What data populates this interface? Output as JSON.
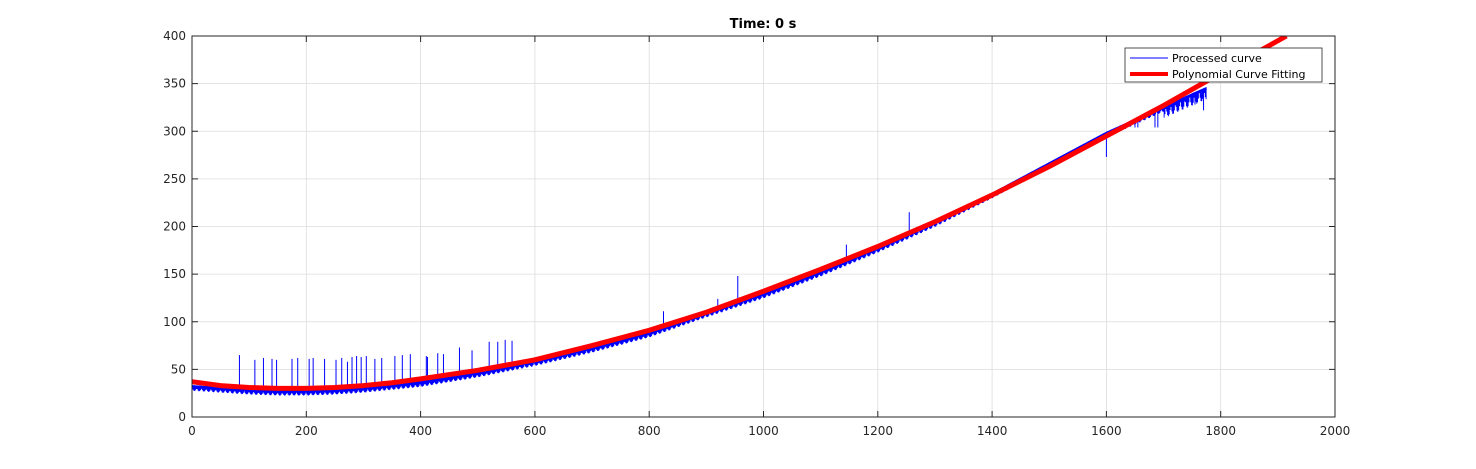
{
  "chart_data": {
    "type": "line",
    "title": "Time: 0 s",
    "xlabel": "",
    "ylabel": "",
    "xlim": [
      0,
      2000
    ],
    "ylim": [
      0,
      400
    ],
    "xticks": [
      0,
      200,
      400,
      600,
      800,
      1000,
      1200,
      1400,
      1600,
      1800,
      2000
    ],
    "yticks": [
      0,
      50,
      100,
      150,
      200,
      250,
      300,
      350,
      400
    ],
    "grid": true,
    "legend": {
      "placement": "top-right",
      "entries": [
        "Processed curve",
        "Polynomial Curve Fitting"
      ]
    },
    "series": [
      {
        "name": "Processed curve",
        "color": "#0000ff",
        "x": [
          0,
          50,
          100,
          150,
          200,
          250,
          300,
          350,
          400,
          500,
          600,
          700,
          800,
          900,
          1000,
          1100,
          1200,
          1300,
          1400,
          1500,
          1600,
          1700,
          1775
        ],
        "y": [
          32,
          30,
          28,
          27,
          27,
          28,
          30,
          33,
          36,
          46,
          58,
          72,
          88,
          109,
          129,
          152,
          177,
          204,
          234,
          266,
          298,
          325,
          345
        ],
        "spikes": [
          {
            "x": 83,
            "y": 65
          },
          {
            "x": 110,
            "y": 60
          },
          {
            "x": 125,
            "y": 62
          },
          {
            "x": 140,
            "y": 61
          },
          {
            "x": 148,
            "y": 60
          },
          {
            "x": 175,
            "y": 61
          },
          {
            "x": 185,
            "y": 62
          },
          {
            "x": 205,
            "y": 61
          },
          {
            "x": 212,
            "y": 62
          },
          {
            "x": 232,
            "y": 61
          },
          {
            "x": 252,
            "y": 60
          },
          {
            "x": 262,
            "y": 62
          },
          {
            "x": 272,
            "y": 58
          },
          {
            "x": 280,
            "y": 63
          },
          {
            "x": 288,
            "y": 64
          },
          {
            "x": 296,
            "y": 63
          },
          {
            "x": 305,
            "y": 64
          },
          {
            "x": 320,
            "y": 61
          },
          {
            "x": 332,
            "y": 62
          },
          {
            "x": 355,
            "y": 64
          },
          {
            "x": 368,
            "y": 65
          },
          {
            "x": 382,
            "y": 66
          },
          {
            "x": 410,
            "y": 64
          },
          {
            "x": 412,
            "y": 63
          },
          {
            "x": 430,
            "y": 67
          },
          {
            "x": 440,
            "y": 66
          },
          {
            "x": 468,
            "y": 73
          },
          {
            "x": 490,
            "y": 70
          },
          {
            "x": 520,
            "y": 79
          },
          {
            "x": 535,
            "y": 79
          },
          {
            "x": 548,
            "y": 81
          },
          {
            "x": 560,
            "y": 80
          },
          {
            "x": 825,
            "y": 111
          },
          {
            "x": 920,
            "y": 124
          },
          {
            "x": 955,
            "y": 148
          },
          {
            "x": 1145,
            "y": 181
          },
          {
            "x": 1255,
            "y": 215
          },
          {
            "x": 1600,
            "y": 273
          },
          {
            "x": 1650,
            "y": 304
          },
          {
            "x": 1655,
            "y": 304
          },
          {
            "x": 1685,
            "y": 304
          },
          {
            "x": 1690,
            "y": 304
          },
          {
            "x": 1755,
            "y": 328
          },
          {
            "x": 1770,
            "y": 322
          }
        ]
      },
      {
        "name": "Polynomial Curve Fitting",
        "color": "#ff0000",
        "x": [
          0,
          50,
          100,
          150,
          200,
          250,
          300,
          350,
          400,
          500,
          600,
          700,
          800,
          900,
          1000,
          1100,
          1200,
          1300,
          1400,
          1500,
          1600,
          1700,
          1800,
          1870,
          1915
        ],
        "y": [
          37,
          33,
          31,
          30,
          30,
          31,
          33,
          36,
          40,
          49,
          60,
          75,
          91,
          110,
          132,
          155,
          179,
          205,
          233,
          263,
          295,
          327,
          361,
          385,
          400
        ]
      }
    ]
  }
}
